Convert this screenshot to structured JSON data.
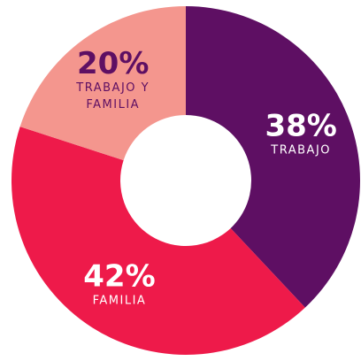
{
  "chart_data": {
    "type": "donut",
    "categories": [
      "TRABAJO",
      "FAMILIA",
      "TRABAJO Y FAMILIA"
    ],
    "values": [
      38,
      42,
      20
    ],
    "value_labels": [
      "38%",
      "42%",
      "20%"
    ],
    "colors": [
      "#5e0f63",
      "#ee1a4a",
      "#f4968e"
    ]
  }
}
